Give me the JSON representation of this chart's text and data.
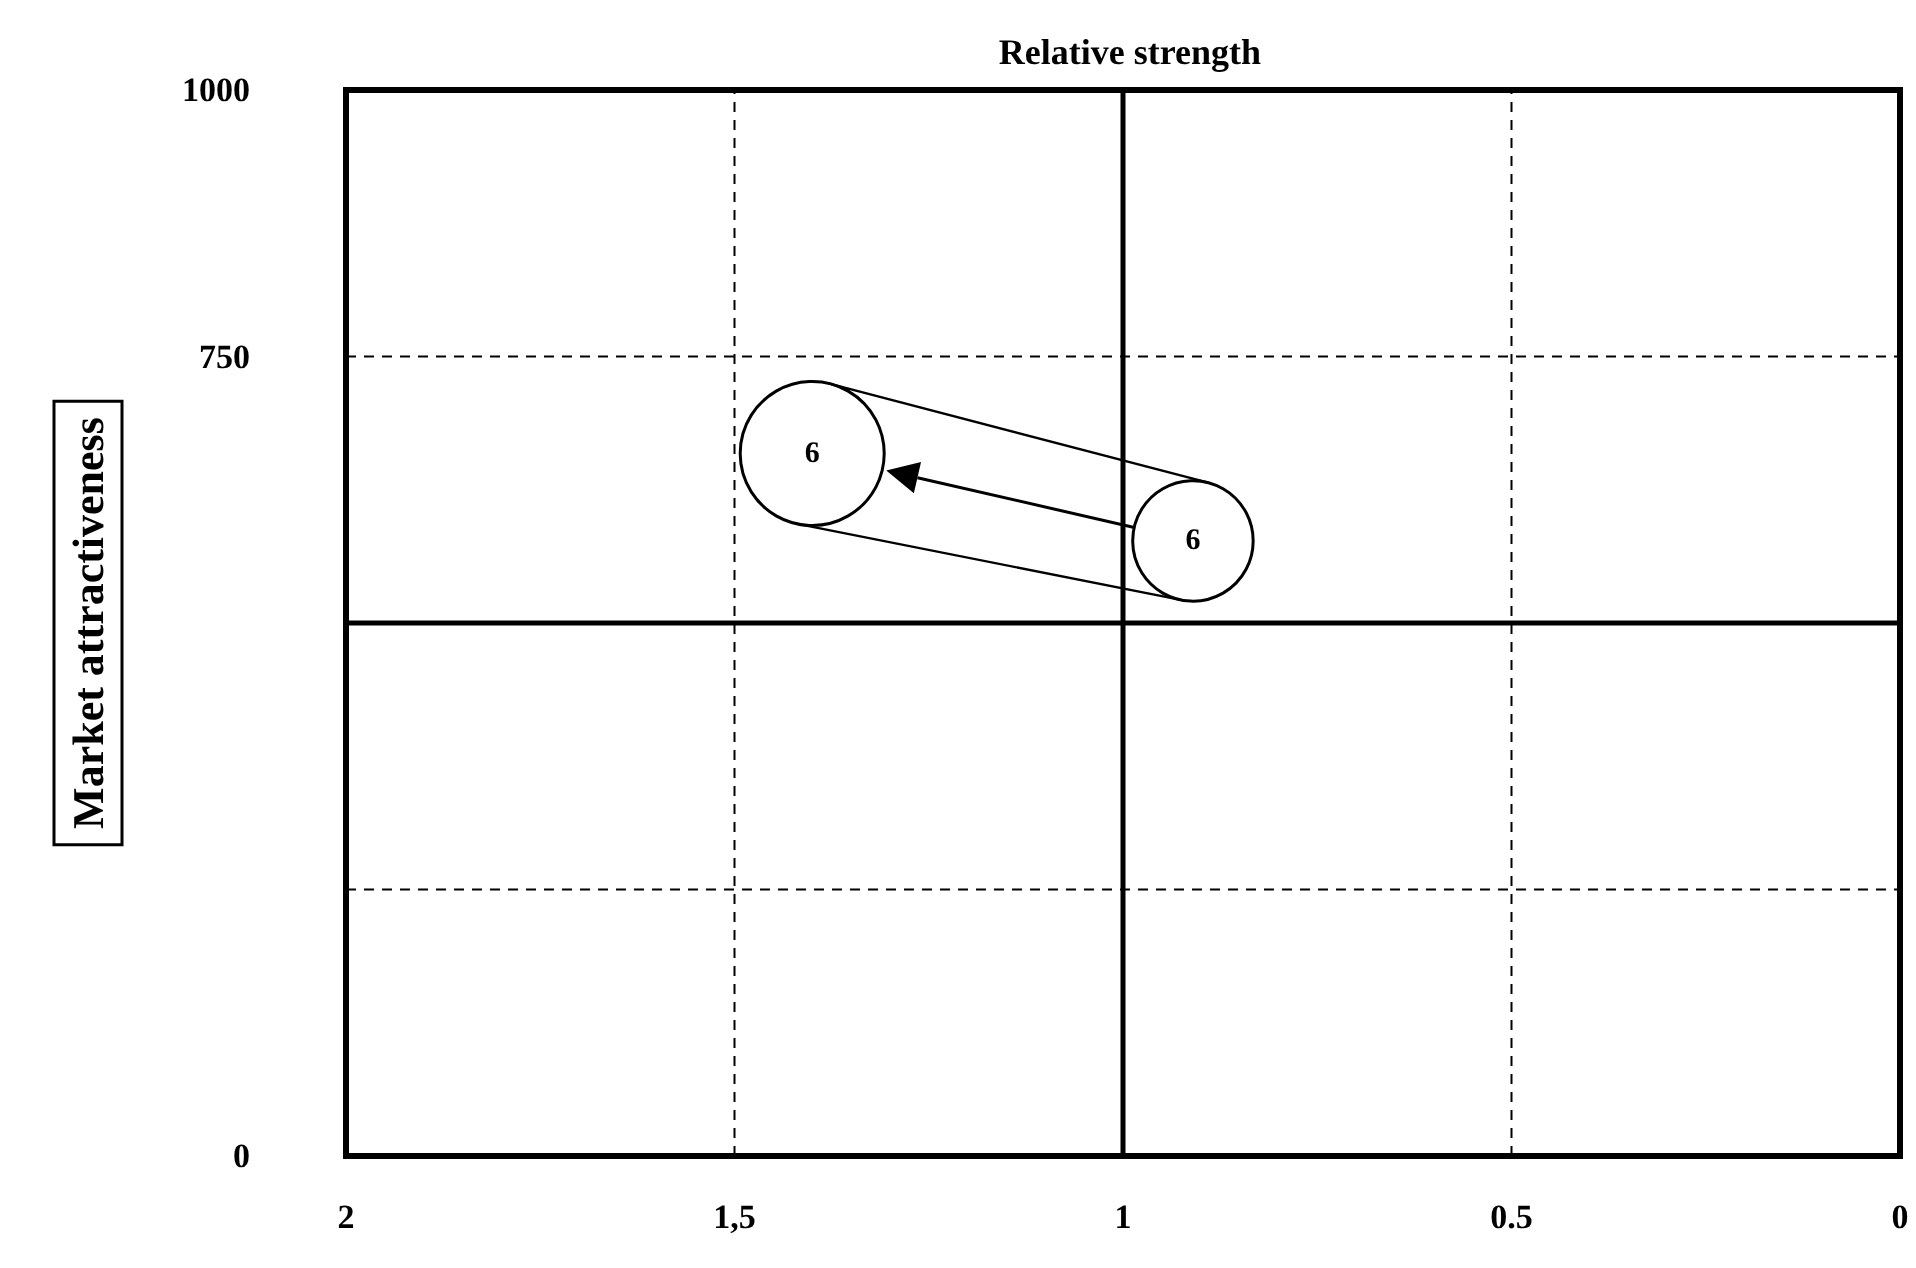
{
  "chart_data": {
    "type": "bubble",
    "title": "Relative strength",
    "ylabel": "Market attractiveness",
    "x": [
      1.4,
      0.91
    ],
    "values": [
      659,
      577
    ],
    "sizes": [
      1,
      0.7
    ],
    "color": "#ffffff",
    "annotations": [
      {
        "text": "6",
        "x": 1.4,
        "y": 659
      },
      {
        "text": "6",
        "x": 0.91,
        "y": 577
      }
    ],
    "xlim": [
      2,
      0
    ],
    "xticks": [
      2,
      {
        "value": 1.5,
        "label": "1,5"
      },
      1,
      0.5,
      0
    ],
    "ylim": [
      0,
      1000
    ],
    "yticks": [
      0,
      {
        "value": 250,
        "label": null
      },
      750,
      1000
    ],
    "grid": true,
    "line_style": "dashed",
    "ref_lines": [
      {
        "axis": "x",
        "value": 1,
        "line_style": "solid",
        "color": "#000000"
      },
      {
        "axis": "y",
        "value": 500,
        "line_style": "solid",
        "color": "#000000"
      }
    ]
  }
}
